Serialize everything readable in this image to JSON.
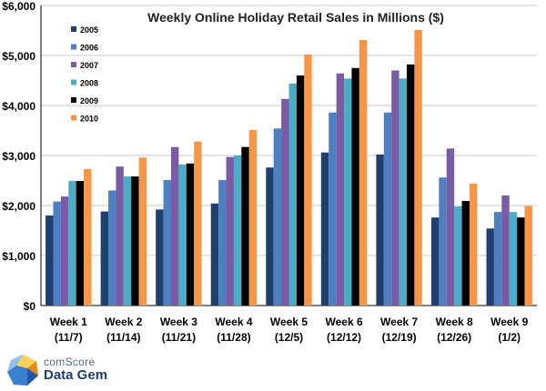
{
  "chart_data": {
    "type": "bar",
    "title": "Weekly Online Holiday Retail Sales in Millions ($)",
    "categories": [
      "Week 1 (11/7)",
      "Week 2 (11/14)",
      "Week 3 (11/21)",
      "Week 4 (11/28)",
      "Week 5 (12/5)",
      "Week 6 (12/12)",
      "Week 7 (12/19)",
      "Week 8 (12/26)",
      "Week 9 (1/2)"
    ],
    "category_lines": [
      [
        "Week 1",
        "(11/7)"
      ],
      [
        "Week 2",
        "(11/14)"
      ],
      [
        "Week 3",
        "(11/21)"
      ],
      [
        "Week 4",
        "(11/28)"
      ],
      [
        "Week 5",
        "(12/5)"
      ],
      [
        "Week 6",
        "(12/12)"
      ],
      [
        "Week 7",
        "(12/19)"
      ],
      [
        "Week 8",
        "(12/26)"
      ],
      [
        "Week 9",
        "(1/2)"
      ]
    ],
    "series": [
      {
        "name": "2005",
        "color": "#1f3f6e",
        "values": [
          1800,
          1880,
          1920,
          2040,
          2760,
          3060,
          3020,
          1760,
          1540
        ]
      },
      {
        "name": "2006",
        "color": "#4d7fc1",
        "values": [
          2080,
          2300,
          2510,
          2510,
          3540,
          3860,
          3860,
          2560,
          1870
        ]
      },
      {
        "name": "2007",
        "color": "#7b5aa6",
        "values": [
          2180,
          2780,
          3170,
          2970,
          4130,
          4640,
          4700,
          3140,
          2200
        ]
      },
      {
        "name": "2008",
        "color": "#4bacc6",
        "values": [
          2490,
          2580,
          2820,
          3000,
          4440,
          4540,
          4540,
          1980,
          1870
        ]
      },
      {
        "name": "2009",
        "color": "#000000",
        "values": [
          2490,
          2580,
          2840,
          3170,
          4600,
          4750,
          4820,
          2090,
          1760
        ]
      },
      {
        "name": "2010",
        "color": "#f79646",
        "values": [
          2730,
          2960,
          3280,
          3510,
          5020,
          5310,
          5510,
          2440,
          1990
        ]
      }
    ],
    "ylim": [
      0,
      6000
    ],
    "yticks": [
      0,
      1000,
      2000,
      3000,
      4000,
      5000,
      6000
    ],
    "ytick_labels": [
      "$0",
      "$1,000",
      "$2,000",
      "$3,000",
      "$4,000",
      "$5,000",
      "$6,000"
    ],
    "xlabel": "",
    "ylabel": "",
    "grid": true,
    "legend_position": "top-left"
  },
  "logo": {
    "line1": "comScore",
    "line2": "Data Gem"
  }
}
